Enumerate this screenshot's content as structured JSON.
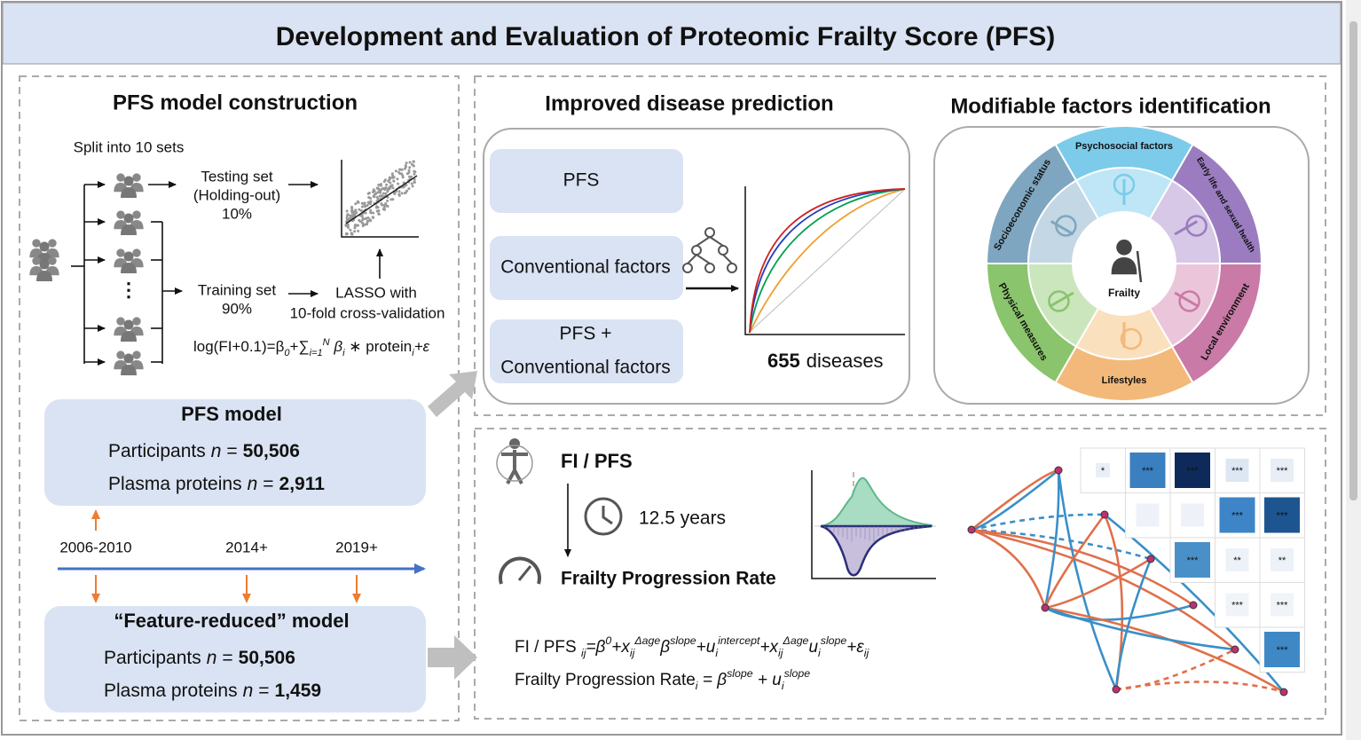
{
  "header": {
    "title": "Development and Evaluation of Proteomic Frailty Score (PFS)"
  },
  "construction": {
    "title": "PFS model construction",
    "split": "Split into 10 sets",
    "testing": [
      "Testing set",
      "(Holding-out)",
      "10%"
    ],
    "training": [
      "Training set",
      "90%"
    ],
    "lasso": [
      "LASSO with",
      "10-fold cross-validation"
    ],
    "formula": [
      {
        "text": "log(FI+0.1)=β"
      },
      {
        "text": "0",
        "script": "sub"
      },
      {
        "text": "+∑"
      },
      {
        "text": "i=1",
        "script": "sub"
      },
      {
        "text": "N",
        "script": "super"
      },
      {
        "text": " β"
      },
      {
        "text": "i",
        "script": "sub"
      },
      {
        "text": " ∗ protein"
      },
      {
        "text": "i",
        "script": "sub"
      },
      {
        "text": "+ε"
      }
    ]
  },
  "pfs_model": {
    "title": "PFS model",
    "rows": [
      {
        "label": "Participants",
        "symbol": "n",
        "relation": "=",
        "value": "50,506"
      },
      {
        "label": "Plasma proteins",
        "symbol": "n",
        "relation": "=",
        "value": "2,911"
      }
    ]
  },
  "timeline": [
    "2006-2010",
    "2014+",
    "2019+"
  ],
  "reduced_model": {
    "title": "“Feature-reduced” model",
    "rows": [
      {
        "label": "Participants",
        "symbol": "n",
        "relation": "=",
        "value": "50,506"
      },
      {
        "label": "Plasma proteins",
        "symbol": "n",
        "relation": "=",
        "value": "1,459"
      }
    ]
  },
  "prediction": {
    "title": "Improved disease prediction",
    "boxes": [
      [
        "PFS"
      ],
      [
        "Conventional factors"
      ],
      [
        "PFS +",
        "Conventional factors"
      ]
    ],
    "count": "655",
    "count_label": "diseases"
  },
  "factors": {
    "title": "Modifiable factors identification",
    "segments": [
      "Psychosocial factors",
      "Early life and sexual health",
      "Local environment",
      "Lifestyles",
      "Physical measures",
      "Socioeconomic status"
    ],
    "center": "Frailty"
  },
  "progression": {
    "measure": "FI / PFS",
    "duration": "12.5 years",
    "outcome": "Frailty Progression Rate",
    "formula_1": [
      {
        "text": "FI / PFS "
      },
      {
        "text": "ij",
        "script": "sub"
      },
      {
        "text": "=β"
      },
      {
        "text": "0",
        "script": "super"
      },
      {
        "text": "+x"
      },
      {
        "text": "ij",
        "script": "sub"
      },
      {
        "text": "Δage",
        "script": "super"
      },
      {
        "text": "β"
      },
      {
        "text": "slope",
        "script": "super"
      },
      {
        "text": "+u"
      },
      {
        "text": "i",
        "script": "sub"
      },
      {
        "text": "intercept",
        "script": "super"
      },
      {
        "text": "+x"
      },
      {
        "text": "ij",
        "script": "sub"
      },
      {
        "text": "Δage",
        "script": "super"
      },
      {
        "text": "u"
      },
      {
        "text": "i",
        "script": "sub"
      },
      {
        "text": "slope",
        "script": "super"
      },
      {
        "text": "+ε"
      },
      {
        "text": "ij",
        "script": "sub"
      }
    ],
    "formula_2": [
      {
        "text": "Frailty Progression Rate"
      },
      {
        "text": "i",
        "script": "sub"
      },
      {
        "text": " = β"
      },
      {
        "text": "slope",
        "script": "super"
      },
      {
        "text": " + u"
      },
      {
        "text": "i",
        "script": "sub"
      },
      {
        "text": "slope",
        "script": "super"
      }
    ],
    "heatmap": {
      "rows": [
        [
          "*",
          "***",
          "***",
          "***",
          "***"
        ],
        [
          null,
          null,
          "***",
          "***"
        ],
        [
          "***",
          "**",
          "**"
        ],
        [
          "***",
          "***"
        ],
        [
          "***"
        ]
      ]
    }
  }
}
